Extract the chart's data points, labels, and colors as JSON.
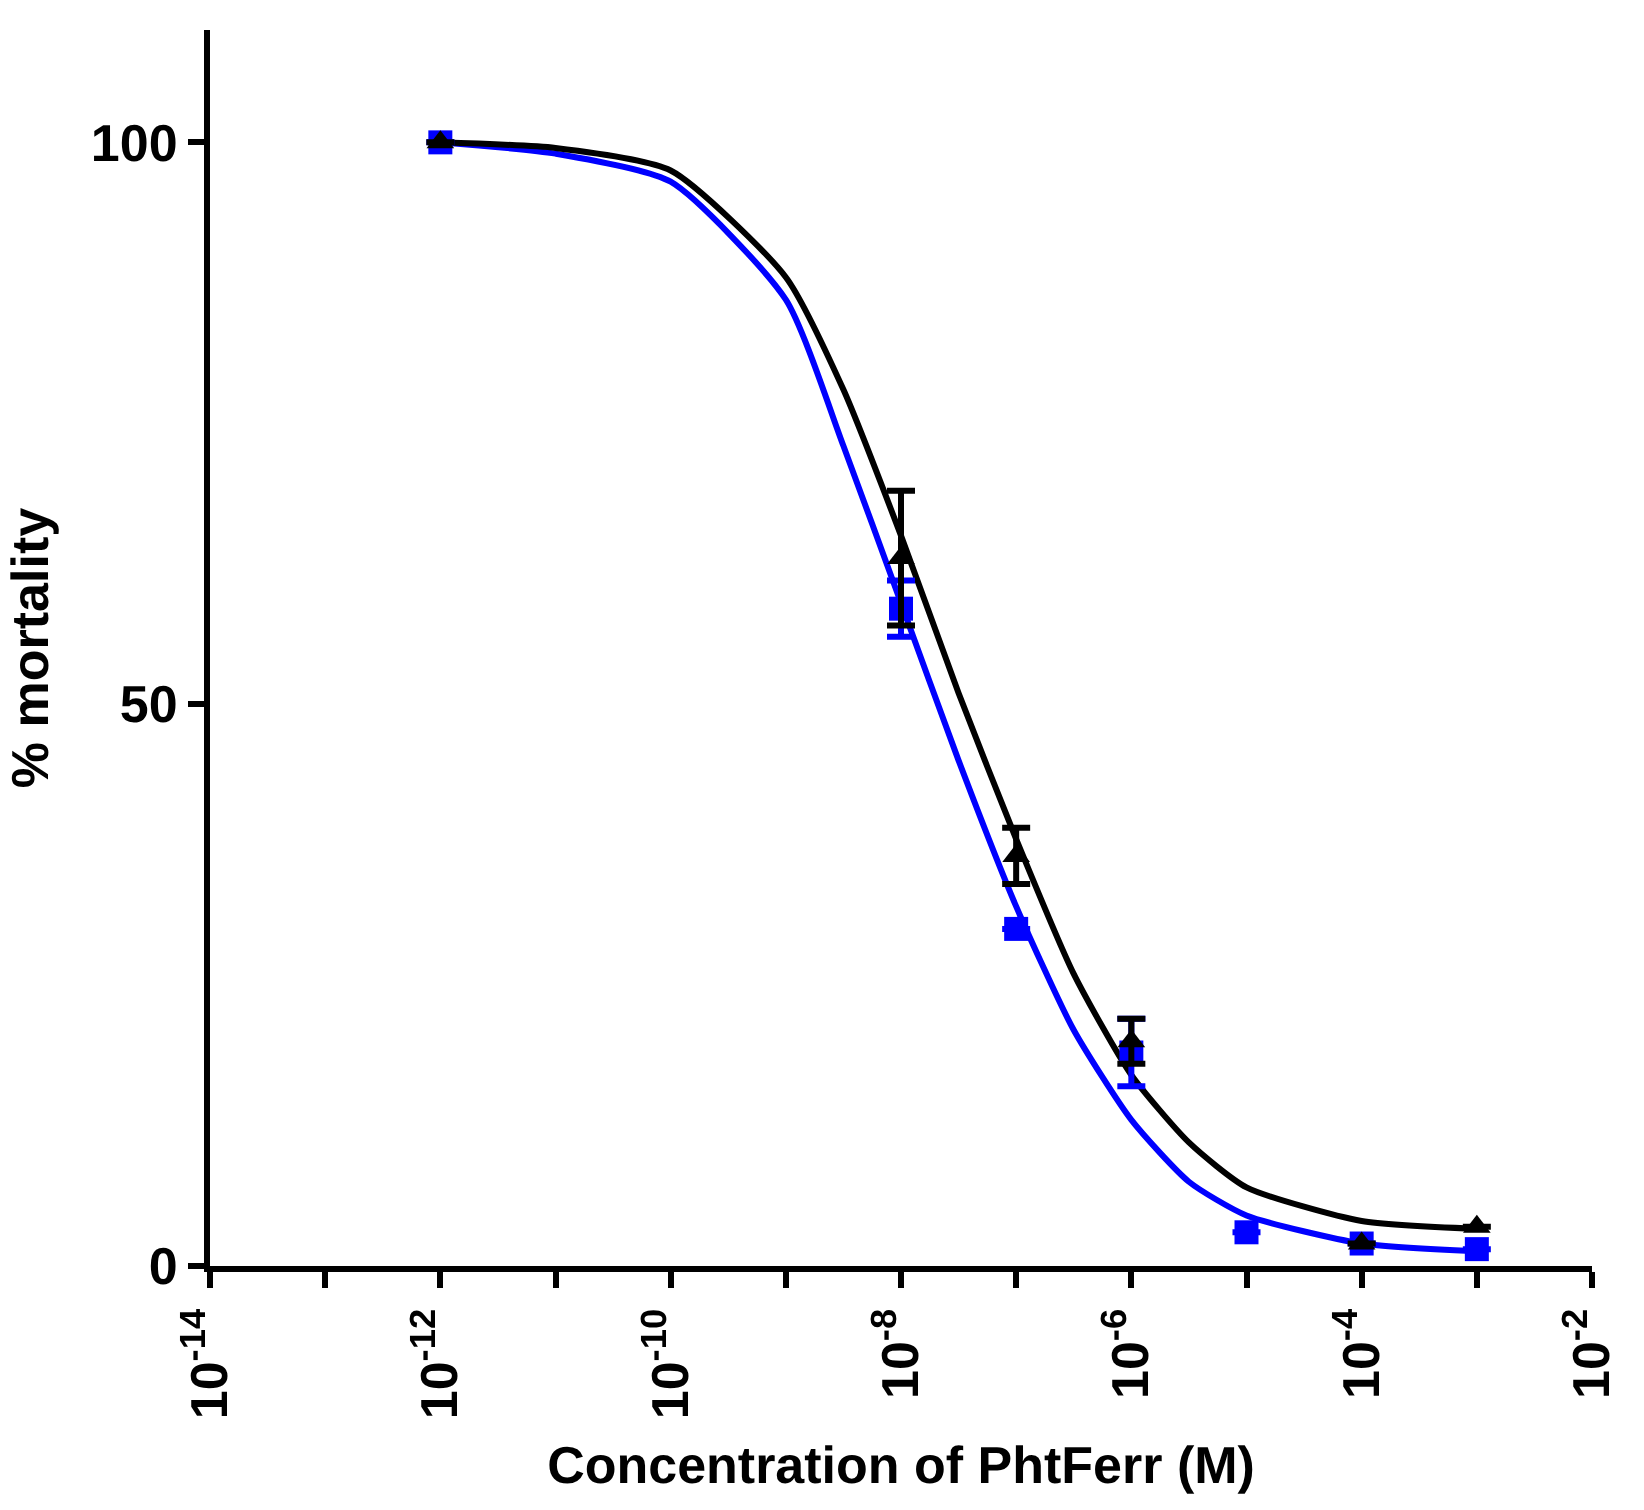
{
  "chart_data": {
    "type": "scatter",
    "xlabel": "Concentration of PhtFerr (M)",
    "ylabel": "% mortality",
    "log": "x",
    "legend": false,
    "xlim": [
      1e-14,
      0.01
    ],
    "ylim": [
      0,
      110
    ],
    "xticks": [
      {
        "value": 1e-14,
        "label": "10$^{-14}$"
      },
      {
        "value": 1e-13,
        "label": null
      },
      {
        "value": 1e-12,
        "label": "10$^{-12}$"
      },
      {
        "value": 1e-11,
        "label": null
      },
      {
        "value": 1e-10,
        "label": "10$^{-10}$"
      },
      {
        "value": 1e-09,
        "label": null
      },
      {
        "value": 1e-08,
        "label": "10$^{-8}$"
      },
      {
        "value": 1e-07,
        "label": null
      },
      {
        "value": 1e-06,
        "label": "10$^{-6}$"
      },
      {
        "value": 1e-05,
        "label": null
      },
      {
        "value": 0.0001,
        "label": "10$^{-4}$"
      },
      {
        "value": 0.001,
        "label": null
      },
      {
        "value": 0.01,
        "label": "10$^{-2}$"
      }
    ],
    "yticks": [
      0,
      50,
      100
    ],
    "series": [
      {
        "type": "line",
        "color": "#0000ff",
        "marker": "none",
        "x": [
          1e-12,
          1e-11,
          1e-10,
          1e-09,
          3.16e-09,
          1e-08,
          3.16e-08,
          1e-07,
          3.16e-07,
          1e-06,
          3.16e-06,
          1e-05,
          0.0001,
          0.001
        ],
        "values": [
          100,
          99,
          96.5,
          86,
          73,
          59,
          45,
          32,
          21,
          13,
          7.5,
          4.5,
          2,
          1.3
        ]
      },
      {
        "type": "line",
        "color": "#000000",
        "marker": "none",
        "x": [
          1e-12,
          1e-11,
          1e-10,
          1e-09,
          3.16e-09,
          1e-08,
          3.16e-08,
          1e-07,
          3.16e-07,
          1e-06,
          3.16e-06,
          1e-05,
          0.0001,
          0.001
        ],
        "values": [
          100,
          99.5,
          97.5,
          88,
          78,
          65,
          51,
          38,
          26,
          17,
          11,
          7,
          4,
          3.3
        ]
      },
      {
        "color": "#0000ff",
        "marker": "square",
        "x": [
          1e-12,
          1e-08,
          1e-07,
          1e-06,
          1e-05,
          0.0001,
          0.001
        ],
        "values": [
          100,
          58.5,
          30,
          19,
          3,
          2,
          1.5
        ],
        "errors": [
          null,
          2.5,
          null,
          3,
          null,
          null,
          null
        ]
      },
      {
        "color": "#000000",
        "marker": "triangle",
        "x": [
          1e-12,
          1e-08,
          1e-07,
          1e-06,
          0.0001,
          0.001
        ],
        "values": [
          100,
          63,
          36.5,
          20,
          2,
          3.5
        ],
        "errors": [
          null,
          6,
          2.5,
          2,
          null,
          null
        ]
      }
    ]
  }
}
